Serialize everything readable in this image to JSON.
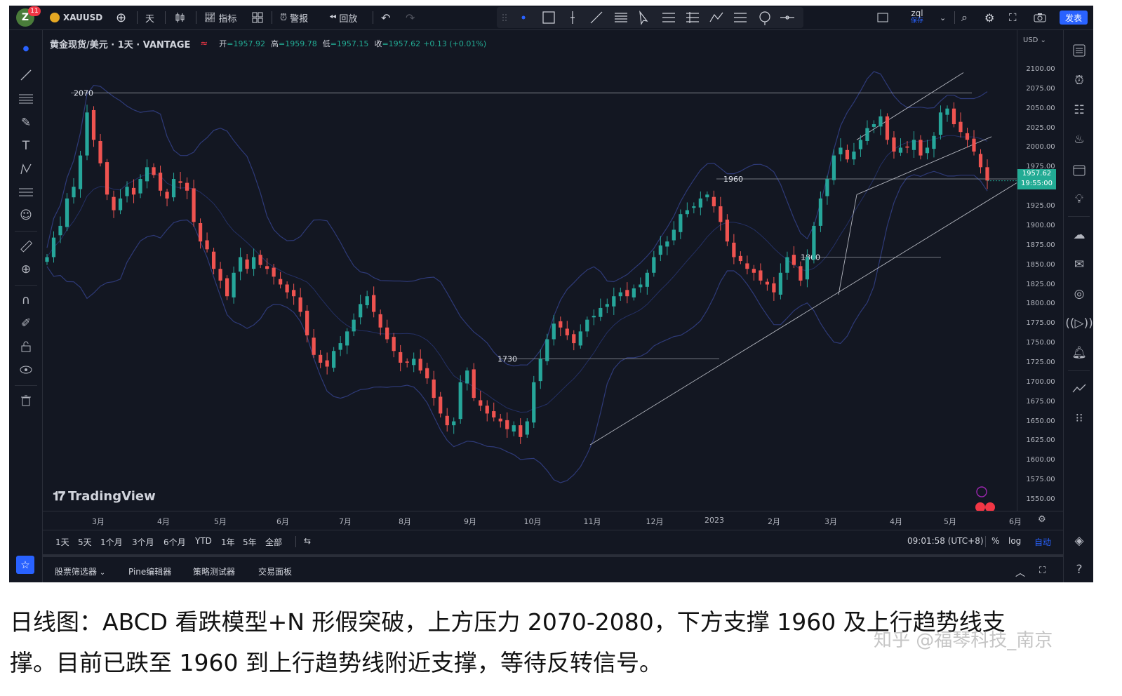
{
  "topbar": {
    "avatar_letter": "Z",
    "avatar_badge": "11",
    "symbol": "XAUUSD",
    "interval": "天",
    "indicators_label": "指标",
    "alert_label": "警报",
    "replay_label": "回放",
    "layout_name": "zql",
    "layout_status": "保存",
    "publish_label": "发表"
  },
  "legend": {
    "title": "黄金现货/美元 · 1天 · VANTAGE",
    "open_key": "开",
    "open": "=1957.92",
    "high_key": "高",
    "high": "=1959.78",
    "low_key": "低",
    "low": "=1957.15",
    "close_key": "收",
    "close": "=1957.62",
    "change": "+0.13 (+0.01%)"
  },
  "price_axis": {
    "currency": "USD",
    "ticks": [
      "2100.00",
      "2075.00",
      "2050.00",
      "2025.00",
      "2000.00",
      "1975.00",
      "1950.00",
      "1925.00",
      "1900.00",
      "1875.00",
      "1850.00",
      "1825.00",
      "1800.00",
      "1775.00",
      "1750.00",
      "1725.00",
      "1700.00",
      "1675.00",
      "1650.00",
      "1625.00",
      "1600.00",
      "1575.00",
      "1550.00"
    ],
    "last_price": "1957.62",
    "countdown": "19:55:00"
  },
  "time_axis": {
    "ticks": [
      "3月",
      "4月",
      "5月",
      "6月",
      "7月",
      "8月",
      "9月",
      "10月",
      "11月",
      "12月",
      "2023",
      "2月",
      "3月",
      "4月",
      "5月",
      "6月"
    ]
  },
  "annotations": {
    "level_2070": "2070",
    "level_1960": "1960",
    "level_1860": "1860",
    "level_1730": "1730"
  },
  "branding": {
    "logo_text": "TradingView"
  },
  "range_bar": {
    "ranges": [
      "1天",
      "5天",
      "1个月",
      "3个月",
      "6个月",
      "YTD",
      "1年",
      "5年",
      "全部"
    ],
    "clock": "09:01:58 (UTC+8)",
    "percent": "%",
    "log": "log",
    "auto": "自动"
  },
  "bottom_panel": {
    "tabs": [
      "股票筛选器",
      "Pine编辑器",
      "策略测试器",
      "交易面板"
    ]
  },
  "caption": {
    "line1": "日线图：ABCD 看跌模型+N 形假突破，上方压力 2070-2080，下方支撑 1960 及上行趋势线支",
    "line2": "撑。目前已跌至 1960 到上行趋势线附近支撑，等待反转信号。"
  },
  "watermark": "知乎 @福琴科技_南京",
  "chart_data": {
    "type": "candlestick",
    "symbol": "XAUUSD",
    "ylim": [
      1540,
      2110
    ],
    "close_series": [
      1860,
      1885,
      1900,
      1935,
      1950,
      1990,
      2045,
      2010,
      1980,
      1940,
      1920,
      1935,
      1950,
      1940,
      1960,
      1975,
      1965,
      1945,
      1935,
      1960,
      1955,
      1945,
      1905,
      1880,
      1870,
      1845,
      1830,
      1810,
      1840,
      1860,
      1845,
      1860,
      1850,
      1845,
      1835,
      1825,
      1815,
      1810,
      1790,
      1760,
      1735,
      1725,
      1720,
      1740,
      1750,
      1765,
      1780,
      1800,
      1810,
      1790,
      1770,
      1755,
      1740,
      1725,
      1725,
      1730,
      1715,
      1705,
      1680,
      1660,
      1645,
      1650,
      1700,
      1715,
      1680,
      1670,
      1660,
      1655,
      1650,
      1640,
      1645,
      1630,
      1650,
      1700,
      1730,
      1755,
      1775,
      1770,
      1760,
      1750,
      1765,
      1780,
      1785,
      1795,
      1800,
      1810,
      1815,
      1810,
      1820,
      1825,
      1840,
      1860,
      1875,
      1880,
      1895,
      1915,
      1920,
      1925,
      1935,
      1940,
      1925,
      1905,
      1880,
      1860,
      1855,
      1845,
      1840,
      1830,
      1825,
      1815,
      1840,
      1860,
      1850,
      1830,
      1860,
      1900,
      1935,
      1960,
      1990,
      2000,
      1985,
      1995,
      2010,
      2025,
      2030,
      2040,
      2010,
      1995,
      2000,
      2000,
      2010,
      1990,
      2000,
      2015,
      2045,
      2050,
      2030,
      2020,
      2010,
      1995,
      1975,
      1958
    ]
  }
}
